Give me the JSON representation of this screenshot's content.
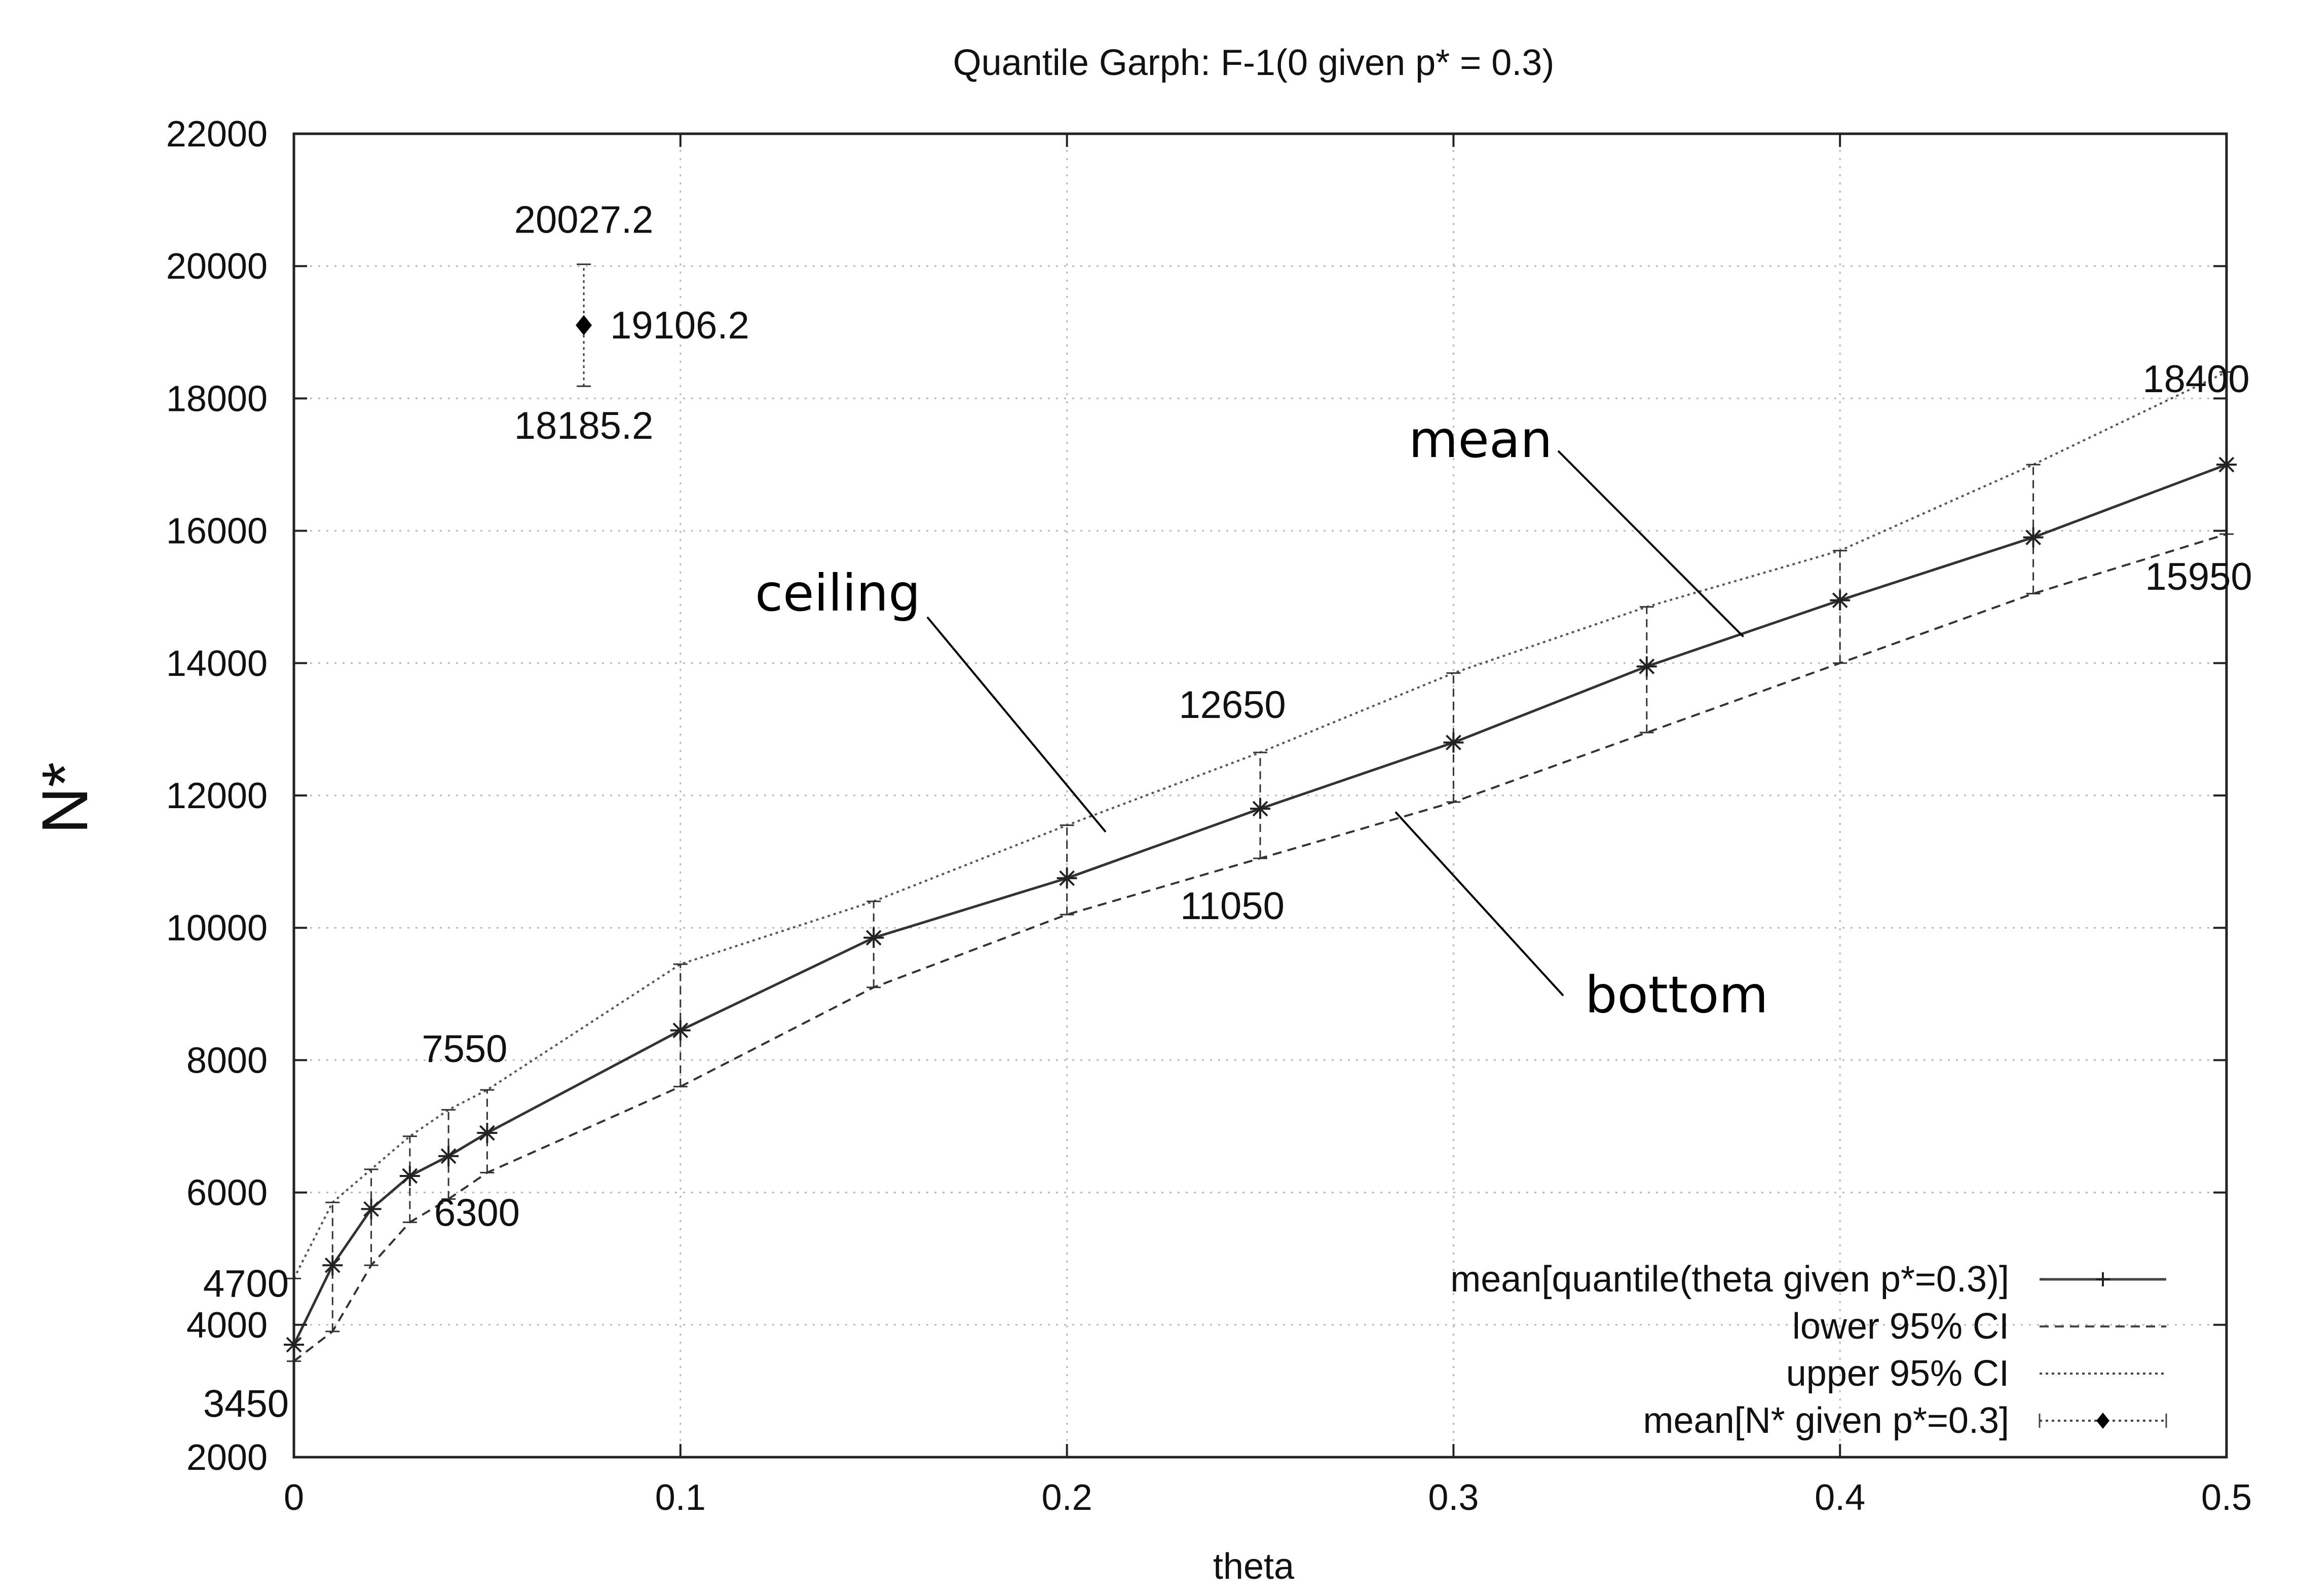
{
  "chart_data": {
    "type": "line",
    "title": "Quantile Garph: F-1(0 given p* = 0.3)",
    "xlabel": "theta",
    "ylabel": "N*",
    "xlim": [
      0,
      0.5
    ],
    "ylim": [
      2000,
      22000
    ],
    "xticks": [
      0,
      0.1,
      0.2,
      0.3,
      0.4,
      0.5
    ],
    "xtick_labels": [
      "0",
      "0.1",
      "0.2",
      "0.3",
      "0.4",
      "0.5"
    ],
    "yticks": [
      2000,
      4000,
      6000,
      8000,
      10000,
      12000,
      14000,
      16000,
      18000,
      20000,
      22000
    ],
    "ytick_labels": [
      "2000",
      "4000",
      "6000",
      "8000",
      "10000",
      "12000",
      "14000",
      "16000",
      "18000",
      "20000",
      "22000"
    ],
    "grid": true,
    "legend_position": "bottom-right",
    "x": [
      0,
      0.01,
      0.02,
      0.03,
      0.04,
      0.05,
      0.1,
      0.15,
      0.2,
      0.25,
      0.3,
      0.35,
      0.4,
      0.45,
      0.5
    ],
    "series": [
      {
        "name": "mean[quantile(theta given p*=0.3)]",
        "style": "solid",
        "marker": "asterisk",
        "color": "#333333",
        "values": [
          3700,
          4900,
          5750,
          6250,
          6550,
          6900,
          8450,
          9850,
          10750,
          11800,
          12800,
          13950,
          14950,
          15900,
          17000
        ]
      },
      {
        "name": "lower 95% CI",
        "style": "dashed",
        "color": "#333333",
        "values": [
          3450,
          3900,
          4900,
          5550,
          5900,
          6300,
          7600,
          9100,
          10200,
          11050,
          11900,
          12950,
          14000,
          15050,
          15950
        ]
      },
      {
        "name": "upper 95% CI",
        "style": "dotted",
        "color": "#555555",
        "values": [
          4700,
          5850,
          6350,
          6850,
          7250,
          7550,
          9450,
          10400,
          11550,
          12650,
          13850,
          14850,
          15700,
          17000,
          18400
        ]
      }
    ],
    "point_series": {
      "name": "mean[N* given p*=0.3]",
      "x": 0.075,
      "y": 19106.2,
      "y_low": 18185.2,
      "y_high": 20027.2,
      "labels": {
        "value": "19106.2",
        "low": "18185.2",
        "high": "20027.2"
      }
    },
    "data_labels": [
      {
        "text": "4700",
        "x": 0,
        "y": 4700,
        "anchor": "end"
      },
      {
        "text": "3450",
        "x": 0,
        "y": 3450,
        "anchor": "end"
      },
      {
        "text": "7550",
        "x": 0.05,
        "y": 7550,
        "anchor": "end"
      },
      {
        "text": "6300",
        "x": 0.05,
        "y": 6300,
        "anchor": "middle"
      },
      {
        "text": "12650",
        "x": 0.25,
        "y": 12650,
        "anchor": "middle"
      },
      {
        "text": "11050",
        "x": 0.25,
        "y": 11050,
        "anchor": "middle"
      },
      {
        "text": "18400",
        "x": 0.5,
        "y": 18400,
        "anchor": "middle"
      },
      {
        "text": "15950",
        "x": 0.5,
        "y": 15950,
        "anchor": "middle"
      }
    ],
    "annotations": [
      {
        "text": "mean",
        "points_to": {
          "x": 0.375,
          "y": 14400
        }
      },
      {
        "text": "ceiling",
        "points_to": {
          "x": 0.21,
          "y": 11450
        }
      },
      {
        "text": "bottom",
        "points_to": {
          "x": 0.285,
          "y": 11750
        }
      }
    ]
  }
}
